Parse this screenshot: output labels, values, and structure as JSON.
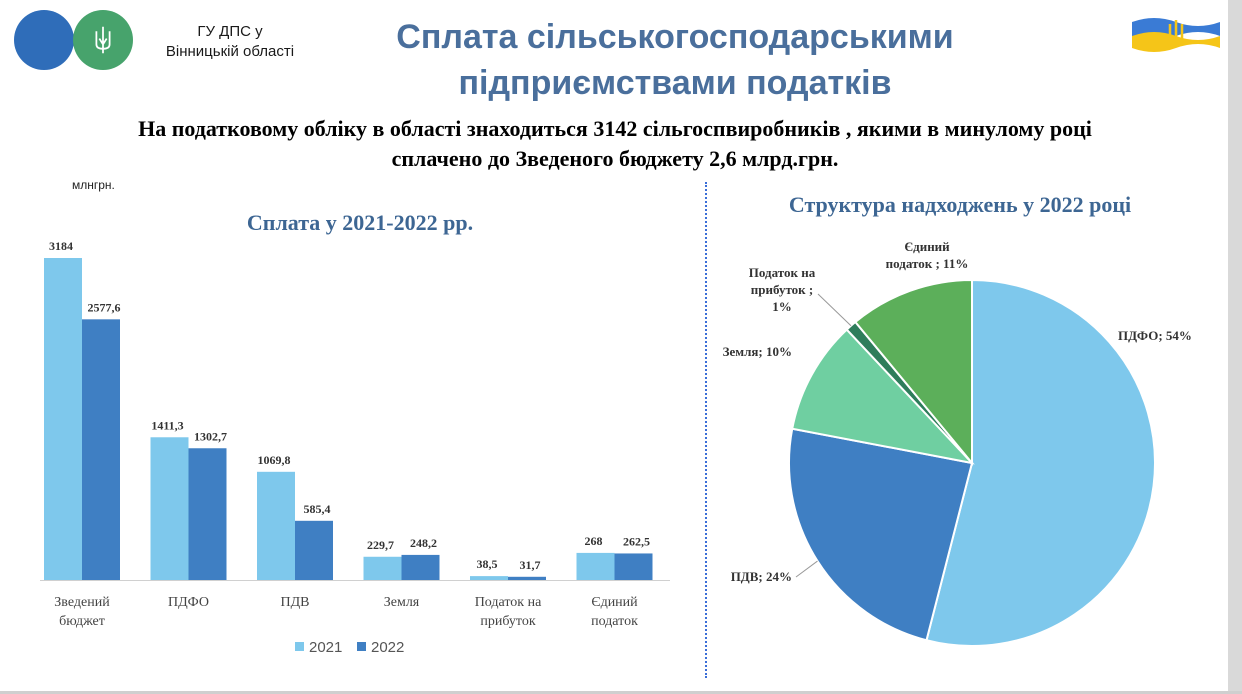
{
  "header": {
    "org_line1": "ГУ ДПС у",
    "org_line2": "Вінницькій області",
    "title_line1": "Сплата сільськогосподарськими",
    "title_line2": "підприємствами податків"
  },
  "subtitle": {
    "line1": "На податковому обліку в області знаходиться 3142 сільгоспвиробників , якими в минулому році",
    "line2": "сплачено до Зведеного бюджету 2,6 млрд.грн."
  },
  "colors": {
    "s2021": "#7ec8ec",
    "s2022": "#3f7fc3",
    "title": "#3d6693"
  },
  "chart_data": [
    {
      "type": "bar",
      "title": "Сплата у 2021-2022 рр.",
      "unit_label": "млнгрн.",
      "categories": [
        [
          "Зведений",
          "бюджет"
        ],
        [
          "ПДФО"
        ],
        [
          "ПДВ"
        ],
        [
          "Земля"
        ],
        [
          "Податок на",
          "прибуток"
        ],
        [
          "Єдиний",
          "податок"
        ]
      ],
      "series": [
        {
          "name": "2021",
          "values": [
            3184,
            1411.3,
            1069.8,
            229.7,
            38.5,
            268
          ],
          "labels": [
            "3184",
            "1411,3",
            "1069,8",
            "229,7",
            "38,5",
            "268"
          ],
          "color": "#7ec8ec"
        },
        {
          "name": "2022",
          "values": [
            2577.6,
            1302.7,
            585.4,
            248.2,
            31.7,
            262.5
          ],
          "labels": [
            "2577,6",
            "1302,7",
            "585,4",
            "248,2",
            "31,7",
            "262,5"
          ],
          "color": "#3f7fc3"
        }
      ],
      "ylim": [
        0,
        3184
      ],
      "legend": "bottom",
      "grid": false
    },
    {
      "type": "pie",
      "title": "Структура надходжень у 2022 році",
      "slices": [
        {
          "label": "ПДФО; 54%",
          "value": 54,
          "color": "#7ec8ec"
        },
        {
          "label": "ПДВ; 24%",
          "value": 24,
          "color": "#3f7fc3"
        },
        {
          "label": "Земля; 10%",
          "value": 10,
          "color": "#6fcfa1"
        },
        {
          "label": "Податок на прибуток ; 1%",
          "value": 1,
          "color": "#2e7d5b"
        },
        {
          "label": "Єдиний податок ; 11%",
          "value": 11,
          "color": "#5caf5a"
        }
      ]
    }
  ]
}
